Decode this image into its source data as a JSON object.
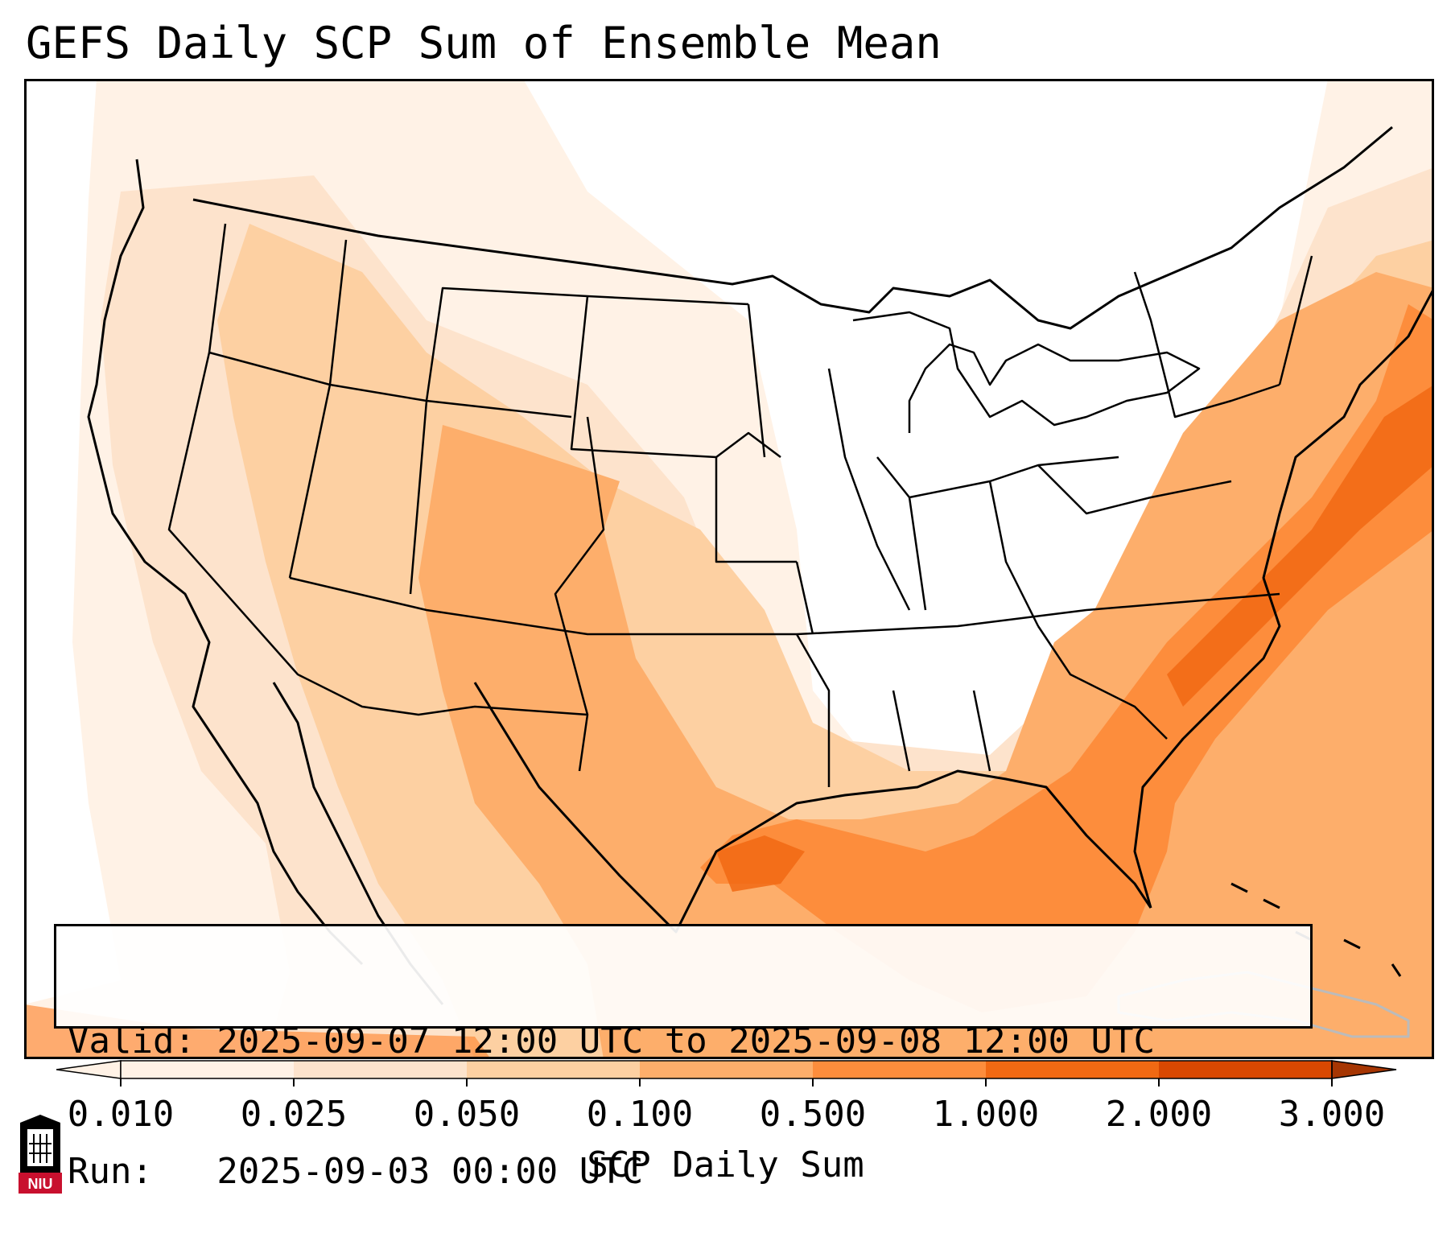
{
  "title": "GEFS Daily SCP Sum of Ensemble Mean",
  "info": {
    "valid_line": "Valid: 2025-09-07 12:00 UTC to 2025-09-08 12:00 UTC",
    "run_line": "Run:   2025-09-03 00:00 UTC"
  },
  "colorbar": {
    "title": "SCP Daily Sum",
    "tick_labels": [
      "0.010",
      "0.025",
      "0.050",
      "0.100",
      "0.500",
      "1.000",
      "2.000",
      "3.000"
    ],
    "colors": [
      "#fff2e6",
      "#fde3cc",
      "#fdd0a2",
      "#fdae6b",
      "#fd8d3c",
      "#f16913",
      "#d94801",
      "#a63603"
    ],
    "extend": "both"
  },
  "logo": {
    "text": "NIU",
    "colors": {
      "shield": "#c8102e",
      "tower": "#000000"
    }
  }
}
